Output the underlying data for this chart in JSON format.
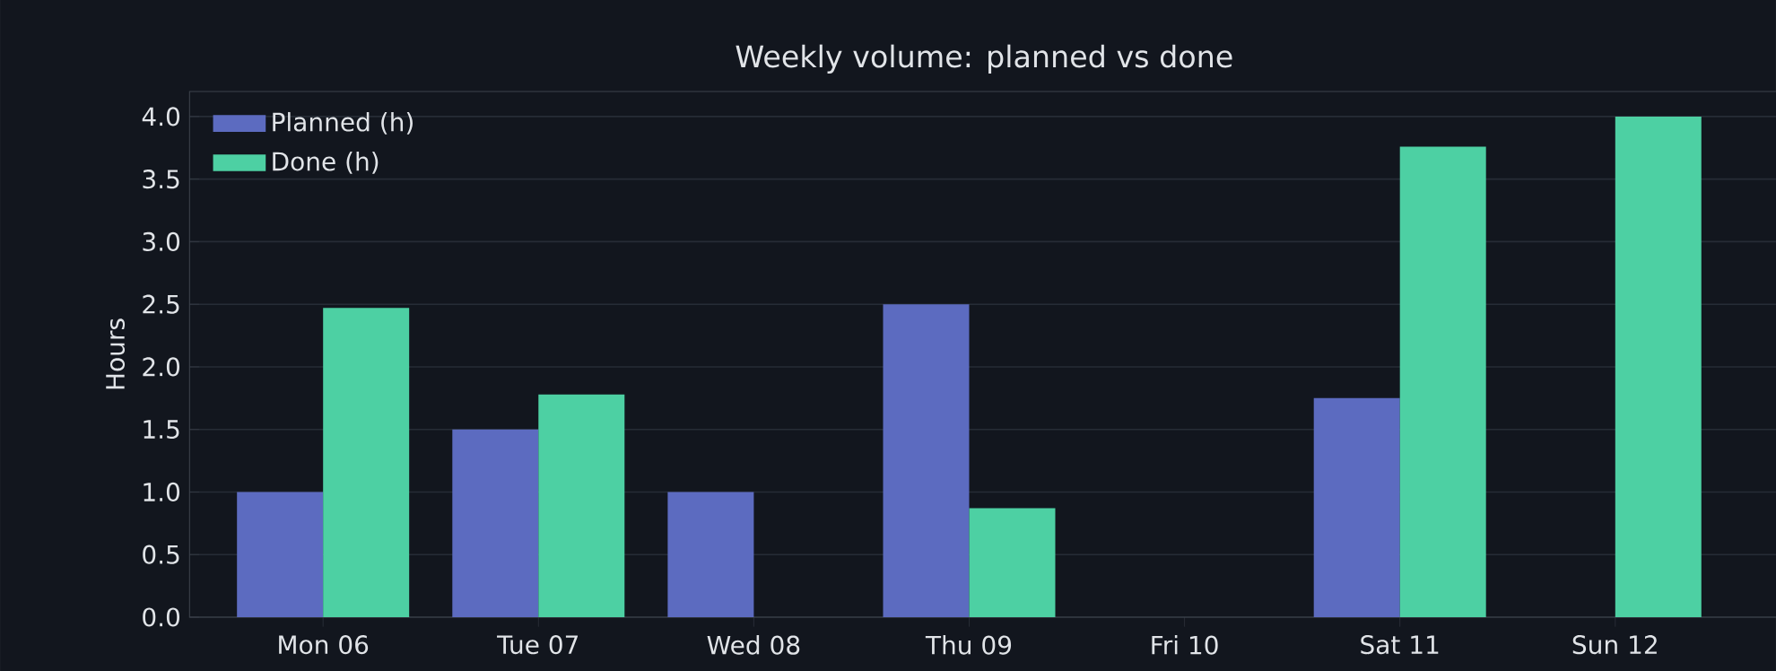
{
  "chart_data": {
    "type": "bar",
    "title": "Weekly volume: planned vs done",
    "ylabel": "Hours",
    "categories": [
      "Mon 06",
      "Tue 07",
      "Wed 08",
      "Thu 09",
      "Fri 10",
      "Sat 11",
      "Sun 12"
    ],
    "series": [
      {
        "name": "Planned (h)",
        "color": "#5c6bc0",
        "values": [
          1.0,
          1.5,
          1.0,
          2.5,
          0,
          1.75,
          0
        ]
      },
      {
        "name": "Done (h)",
        "color": "#4dd0a3",
        "values": [
          2.47,
          1.78,
          0,
          0.87,
          0,
          3.76,
          4.0
        ]
      }
    ],
    "ylim": [
      0,
      4.2
    ],
    "yticks": [
      {
        "value": 0,
        "label": "0.0"
      },
      {
        "value": 0.5,
        "label": "0.5"
      },
      {
        "value": 1,
        "label": "1.0"
      },
      {
        "value": 1.5,
        "label": "1.5"
      },
      {
        "value": 2,
        "label": "2.0"
      },
      {
        "value": 2.5,
        "label": "2.5"
      },
      {
        "value": 3,
        "label": "3.0"
      },
      {
        "value": 3.5,
        "label": "3.5"
      },
      {
        "value": 4,
        "label": "4.0"
      }
    ],
    "grid": "y",
    "legend": "top left"
  }
}
